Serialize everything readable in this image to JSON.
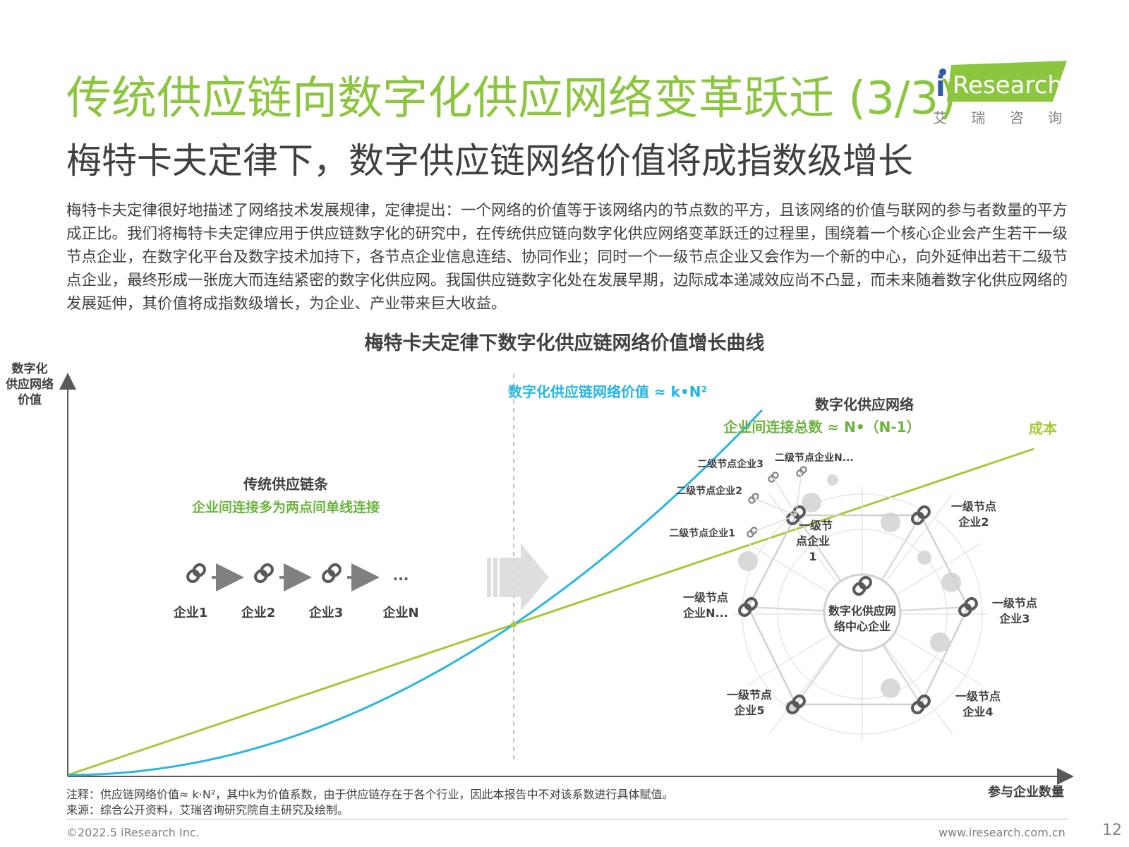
{
  "header": {
    "title": "传统供应链向数字化供应网络变革跃迁 (3/3)",
    "subtitle": "梅特卡夫定律下，数字供应链网络价值将成指数级增长",
    "logo": {
      "text": "Research",
      "i_letter": "i",
      "cn": "艾 瑞 咨 询",
      "color": "#8cc63f"
    }
  },
  "intro": "梅特卡夫定律很好地描述了网络技术发展规律，定律提出：一个网络的价值等于该网络内的节点数的平方，且该网络的价值与联网的参与者数量的平方成正比。我们将梅特卡夫定律应用于供应链数字化的研究中，在传统供应链向数字化供应网络变革跃迁的过程里，围绕着一个核心企业会产生若干一级节点企业，在数字化平台及数字技术加持下，各节点企业信息连结、协同作业；同时一个一级节点企业又会作为一个新的中心，向外延伸出若干二级节点企业，最终形成一张庞大而连结紧密的数字化供应网。我国供应链数字化处在发展早期，边际成本递减效应尚不凸显，而未来随着数字化供应网络的发展延伸，其价值将成指数级增长，为企业、产业带来巨大收益。",
  "diagram": {
    "title": "梅特卡夫定律下数字化供应链网络价值增长曲线",
    "y_axis_label": [
      "数字化",
      "供应网络",
      "价值"
    ],
    "x_axis_label": "参与企业数量",
    "curve_value_label": "数字化供应链网络价值 ≈ k•N²",
    "curve_cost_label": "成本",
    "traditional": {
      "title": "传统供应链条",
      "subtitle": "企业间连接多为两点间单线连接",
      "nodes": [
        "企业1",
        "企业2",
        "企业3",
        "企业N"
      ],
      "ellipsis": "..."
    },
    "network": {
      "title": "数字化供应网络",
      "subtitle": "企业间连接总数 ≈ N•（N-1）",
      "center": [
        "数字化供应网",
        "络中心企业"
      ],
      "first_level": [
        [
          "一级节",
          "点企业",
          "1"
        ],
        [
          "一级节点",
          "企业2"
        ],
        [
          "一级节点",
          "企业3"
        ],
        [
          "一级节点",
          "企业4"
        ],
        [
          "一级节点",
          "企业5"
        ],
        [
          "一级节点",
          "企业N..."
        ]
      ],
      "second_level": [
        "二级节点企业1",
        "二级节点企业2",
        "二级节点企业3",
        "二级节点企业N..."
      ]
    },
    "colors": {
      "value_curve": "#29b6e0",
      "cost_line": "#a8c83a",
      "green_text": "#6db33f",
      "blue_text": "#29b6e0",
      "dark": "#404040"
    }
  },
  "notes": {
    "note": "注释：供应链网络价值≈ k·N²，其中k为价值系数，由于供应链存在于各个行业，因此本报告中不对该系数进行具体赋值。",
    "source": "来源：综合公开资料，艾瑞咨询研究院自主研究及绘制。"
  },
  "footer": {
    "copyright": "©2022.5 iResearch Inc.",
    "url": "www.iresearch.com.cn",
    "page": "12"
  }
}
